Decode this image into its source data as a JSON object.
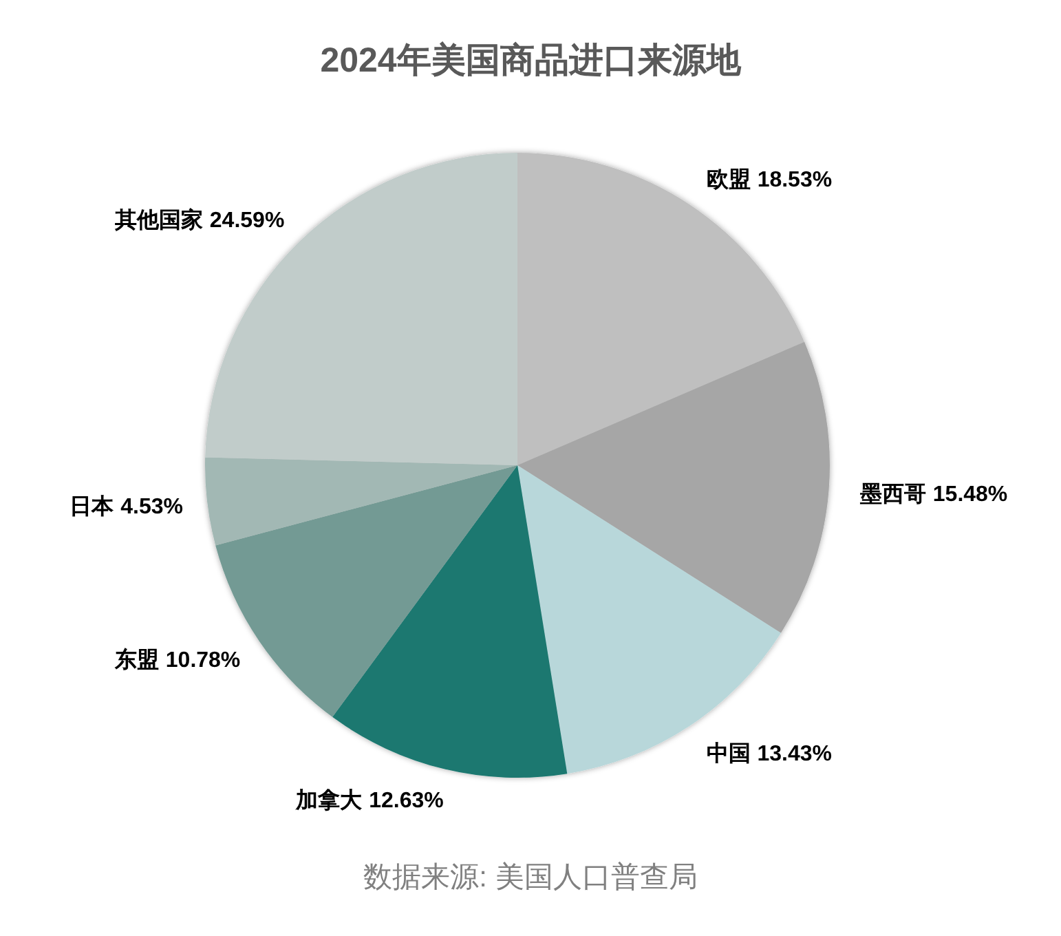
{
  "chart_data": {
    "type": "pie",
    "title": "2024年美国商品进口来源地",
    "categories": [
      "欧盟",
      "墨西哥",
      "中国",
      "加拿大",
      "东盟",
      "日本",
      "其他国家"
    ],
    "values": [
      18.53,
      15.48,
      13.43,
      12.63,
      10.78,
      4.53,
      24.59
    ],
    "value_labels": [
      "18.53%",
      "15.48%",
      "13.43%",
      "12.63%",
      "10.78%",
      "4.53%",
      "24.59%"
    ],
    "colors": [
      "#bfbfbf",
      "#a6a6a6",
      "#b8d7da",
      "#1a7870",
      "#739a94",
      "#a2b8b4",
      "#c1ccca"
    ],
    "annotations": [
      "数据来源: 美国人口普查局"
    ]
  }
}
